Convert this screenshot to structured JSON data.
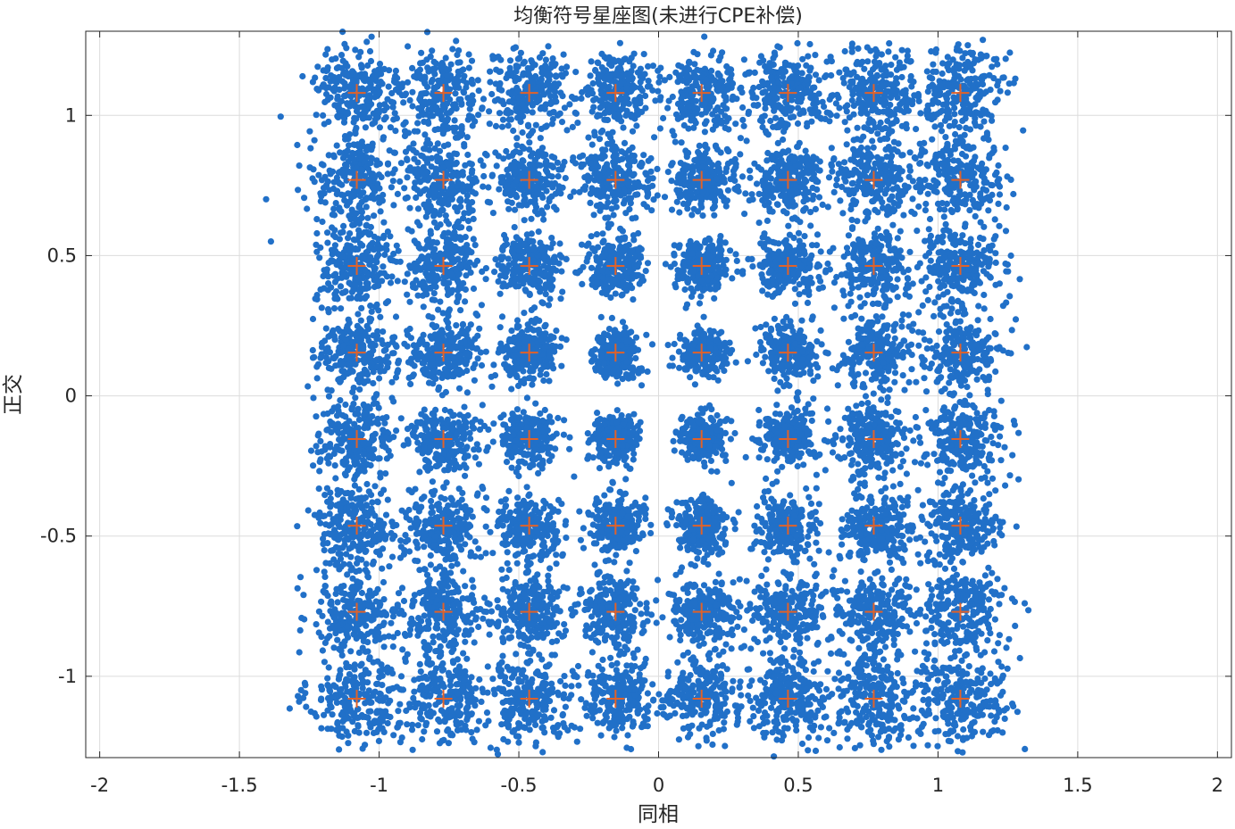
{
  "chart_data": {
    "type": "scatter",
    "title": "均衡符号星座图(未进行CPE补偿)",
    "xlabel": "同相",
    "ylabel": "正交",
    "xlim": [
      -2.05,
      2.05
    ],
    "ylim": [
      -1.29,
      1.3
    ],
    "xticks": [
      -2,
      -1.5,
      -1,
      -0.5,
      0,
      0.5,
      1,
      1.5,
      2
    ],
    "xtick_labels": [
      "-2",
      "-1.5",
      "-1",
      "-0.5",
      "0",
      "0.5",
      "1",
      "1.5",
      "2"
    ],
    "yticks": [
      -1,
      -0.5,
      0,
      0.5,
      1
    ],
    "ytick_labels": [
      "-1",
      "-0.5",
      "0",
      "0.5",
      "1"
    ],
    "grid": true,
    "modulation": "64-QAM",
    "ideal_levels": [
      -1.08,
      -0.77,
      -0.463,
      -0.154,
      0.154,
      0.463,
      0.77,
      1.08
    ],
    "cluster_spread_inner": 0.035,
    "cluster_spread_outer": 0.085,
    "series": [
      {
        "role": "received-symbols",
        "marker": "dot",
        "color": "#2170c8"
      },
      {
        "role": "ideal-constellation",
        "marker": "plus",
        "color": "#e0622a"
      }
    ]
  }
}
